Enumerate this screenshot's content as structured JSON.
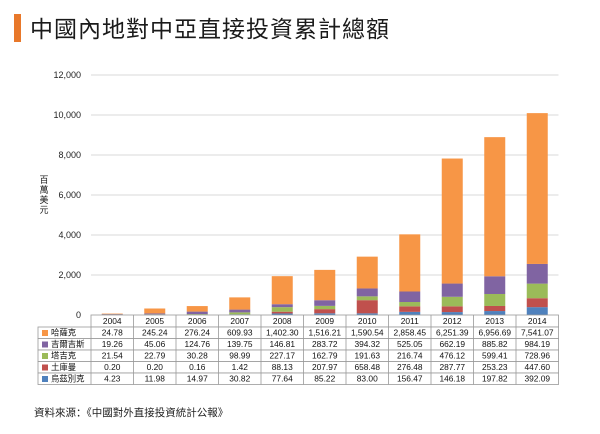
{
  "page": {
    "title": "中國內地對中亞直接投資累計總額",
    "source": "資料來源：《中國對外直接投資統計公報》"
  },
  "colors": {
    "accent": "#e8782a",
    "grid": "#d9d9d9",
    "axis": "#999999"
  },
  "chart_data": {
    "type": "bar",
    "stacked": true,
    "title": "中國內地對中亞直接投資累計總額",
    "ylabel": "百萬美元",
    "xlabel": "",
    "ylim": [
      0,
      12000
    ],
    "yticks": [
      0,
      2000,
      4000,
      6000,
      8000,
      10000,
      12000
    ],
    "ytick_labels": [
      "0",
      "2,000",
      "4,000",
      "6,000",
      "8,000",
      "10,000",
      "12,000"
    ],
    "grid": true,
    "categories": [
      "2004",
      "2005",
      "2006",
      "2007",
      "2008",
      "2009",
      "2010",
      "2011",
      "2012",
      "2013",
      "2014"
    ],
    "series": [
      {
        "name": "烏茲別克",
        "color": "#4f81bd",
        "values": [
          4.23,
          11.98,
          14.97,
          30.82,
          77.64,
          85.22,
          83.0,
          156.47,
          146.18,
          197.82,
          392.09
        ],
        "labels": [
          "4.23",
          "11.98",
          "14.97",
          "30.82",
          "77.64",
          "85.22",
          "83.00",
          "156.47",
          "146.18",
          "197.82",
          "392.09"
        ]
      },
      {
        "name": "土庫曼",
        "color": "#c0504d",
        "values": [
          0.2,
          0.2,
          0.16,
          1.42,
          88.13,
          207.97,
          658.48,
          276.48,
          287.77,
          253.23,
          447.6
        ],
        "labels": [
          "0.20",
          "0.20",
          "0.16",
          "1.42",
          "88.13",
          "207.97",
          "658.48",
          "276.48",
          "287.77",
          "253.23",
          "447.60"
        ]
      },
      {
        "name": "塔吉克",
        "color": "#9bbb59",
        "values": [
          21.54,
          22.79,
          30.28,
          98.99,
          227.17,
          162.79,
          191.63,
          216.74,
          476.12,
          599.41,
          728.96
        ],
        "labels": [
          "21.54",
          "22.79",
          "30.28",
          "98.99",
          "227.17",
          "162.79",
          "191.63",
          "216.74",
          "476.12",
          "599.41",
          "728.96"
        ]
      },
      {
        "name": "吉爾吉斯",
        "color": "#8064a2",
        "values": [
          19.26,
          45.06,
          124.76,
          139.75,
          146.81,
          283.72,
          394.32,
          525.05,
          662.19,
          885.82,
          984.19
        ],
        "labels": [
          "19.26",
          "45.06",
          "124.76",
          "139.75",
          "146.81",
          "283.72",
          "394.32",
          "525.05",
          "662.19",
          "885.82",
          "984.19"
        ]
      },
      {
        "name": "哈薩克",
        "color": "#f79646",
        "values": [
          24.78,
          245.24,
          276.24,
          609.93,
          1402.3,
          1516.21,
          1590.54,
          2858.45,
          6251.39,
          6956.69,
          7541.07
        ],
        "labels": [
          "24.78",
          "245.24",
          "276.24",
          "609.93",
          "1,402.30",
          "1,516.21",
          "1,590.54",
          "2,858.45",
          "6,251.39",
          "6,956.69",
          "7,541.07"
        ]
      }
    ],
    "table_row_order": [
      "哈薩克",
      "吉爾吉斯",
      "塔吉克",
      "土庫曼",
      "烏茲別克"
    ]
  }
}
